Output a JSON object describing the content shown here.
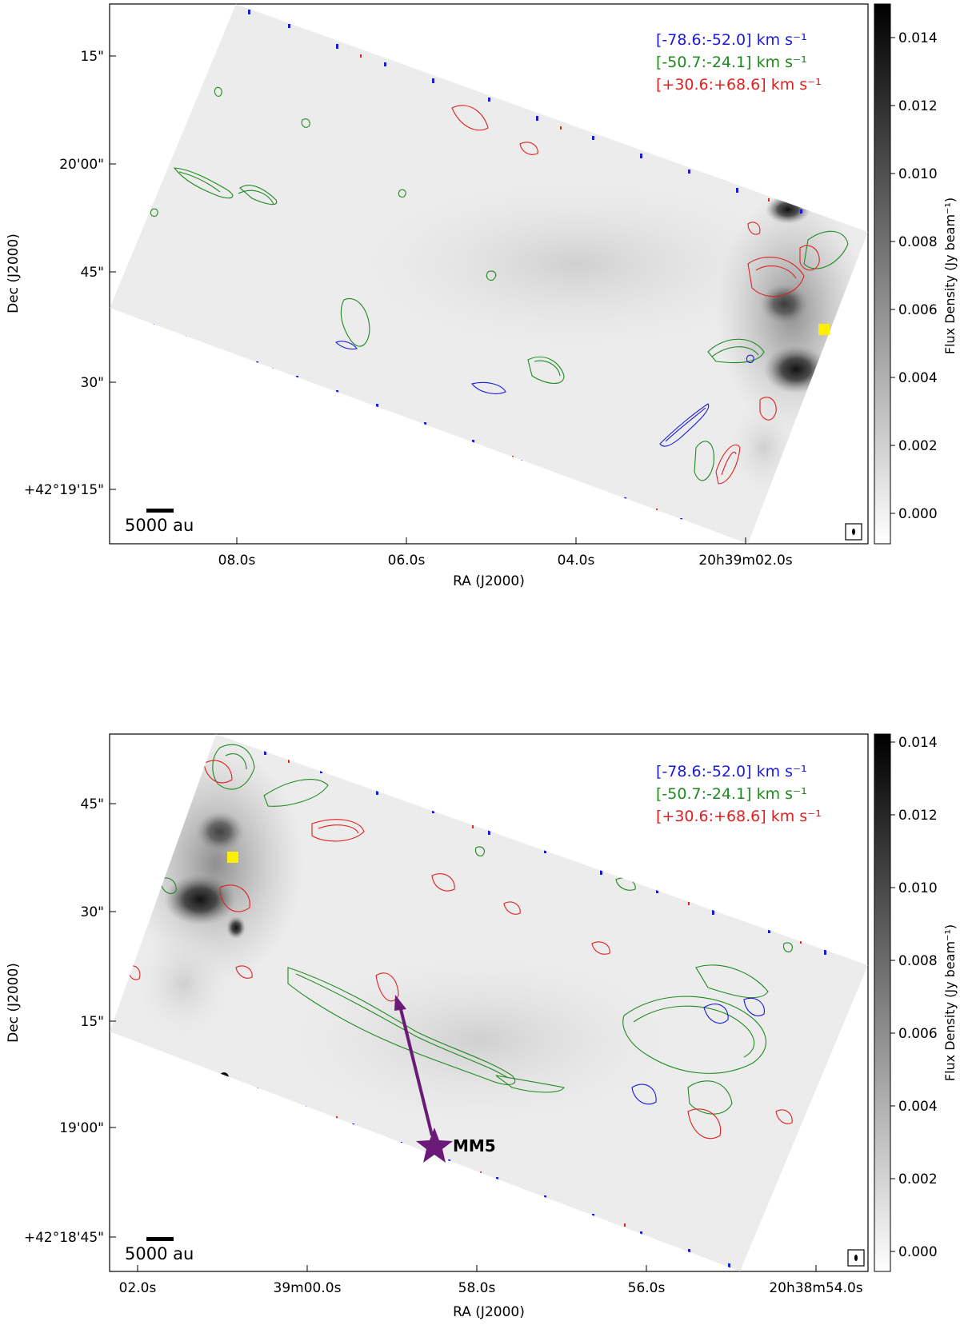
{
  "panels": [
    {
      "id": "top",
      "ra_ticks": [
        "08.0s",
        "06.0s",
        "04.0s",
        "20h39m02.0s"
      ],
      "dec_ticks": [
        "15\"",
        "20'00\"",
        "45\"",
        "30\"",
        "+42°19'15\""
      ],
      "xlabel": "RA (J2000)",
      "ylabel": "Dec (J2000)",
      "colorbar_label": "Flux Density (Jy beam⁻¹)",
      "colorbar_ticks": [
        "0.014",
        "0.012",
        "0.010",
        "0.008",
        "0.006",
        "0.004",
        "0.002",
        "0.000"
      ],
      "legend": [
        {
          "label": "[-78.6:-52.0] km s⁻¹",
          "color": "#1a1adb"
        },
        {
          "label": "[-50.7:-24.1] km s⁻¹",
          "color": "#1e8a1e"
        },
        {
          "label": "[+30.6:+68.6] km s⁻¹",
          "color": "#e02020"
        }
      ],
      "scalebar": "5000 au"
    },
    {
      "id": "bottom",
      "ra_ticks": [
        "02.0s",
        "39m00.0s",
        "58.0s",
        "56.0s",
        "20h38m54.0s"
      ],
      "dec_ticks": [
        "45\"",
        "30\"",
        "15\"",
        "19'00\"",
        "+42°18'45\""
      ],
      "xlabel": "RA (J2000)",
      "ylabel": "Dec (J2000)",
      "colorbar_label": "Flux Density (Jy beam⁻¹)",
      "colorbar_ticks": [
        "0.014",
        "0.012",
        "0.010",
        "0.008",
        "0.006",
        "0.004",
        "0.002",
        "0.000"
      ],
      "legend": [
        {
          "label": "[-78.6:-52.0] km s⁻¹",
          "color": "#1a1adb"
        },
        {
          "label": "[-50.7:-24.1] km s⁻¹",
          "color": "#1e8a1e"
        },
        {
          "label": "[+30.6:+68.6] km s⁻¹",
          "color": "#e02020"
        }
      ],
      "scalebar": "5000 au",
      "source_label": "MM5",
      "source_color": "#6b1a7a"
    }
  ]
}
